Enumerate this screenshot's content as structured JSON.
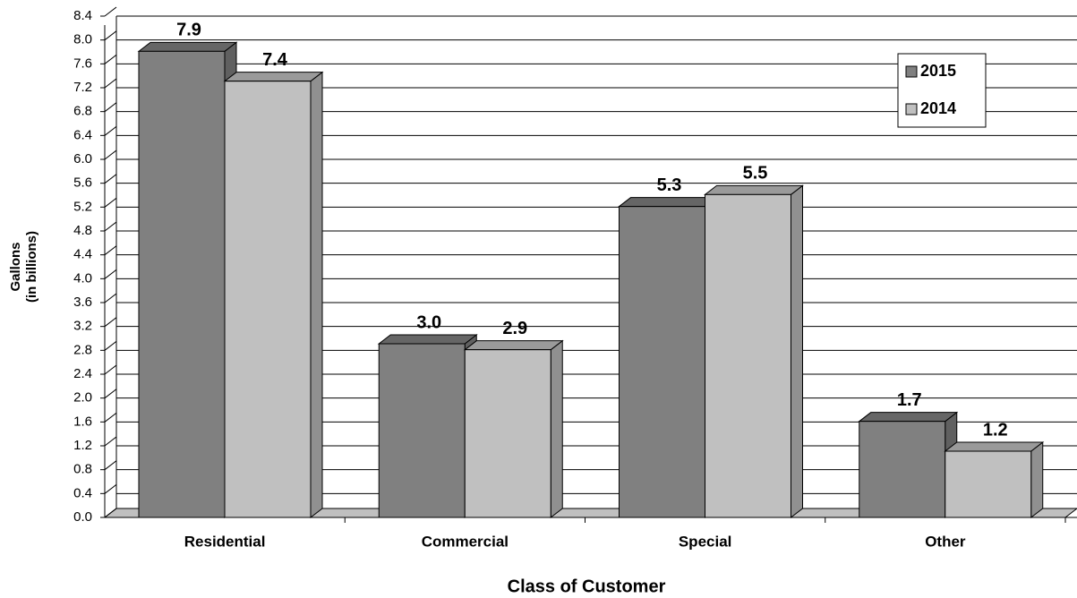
{
  "chart_data": {
    "type": "bar3d",
    "y_label": [
      "Gallons",
      "(in billions)"
    ],
    "x_label": "Class of Customer",
    "categories": [
      "Residential",
      "Commercial",
      "Special",
      "Other"
    ],
    "series": [
      {
        "name": "2015",
        "color": "#808080",
        "values": [
          7.9,
          3.0,
          5.3,
          1.7
        ],
        "value_labels": [
          "7.9",
          "3.0",
          "5.3",
          "1.7"
        ]
      },
      {
        "name": "2014",
        "color": "#c0c0c0",
        "values": [
          7.4,
          2.9,
          5.5,
          1.2
        ],
        "value_labels": [
          "7.4",
          "2.9",
          "5.5",
          "1.2"
        ]
      }
    ],
    "ylim": [
      0,
      8.4
    ],
    "yticks": [
      {
        "value": 0,
        "label": "0.0"
      },
      0.4,
      0.8,
      1.2,
      1.6,
      {
        "value": 2,
        "label": "2.0"
      },
      2.4,
      2.8,
      3.2,
      3.6,
      {
        "value": 4,
        "label": "4.0"
      },
      4.4,
      4.8,
      5.2,
      5.6,
      {
        "value": 6,
        "label": "6.0"
      },
      6.4,
      6.8,
      7.2,
      7.6,
      {
        "value": 8,
        "label": "8.0"
      },
      8.4
    ],
    "grid": true,
    "legend": "upper right"
  }
}
